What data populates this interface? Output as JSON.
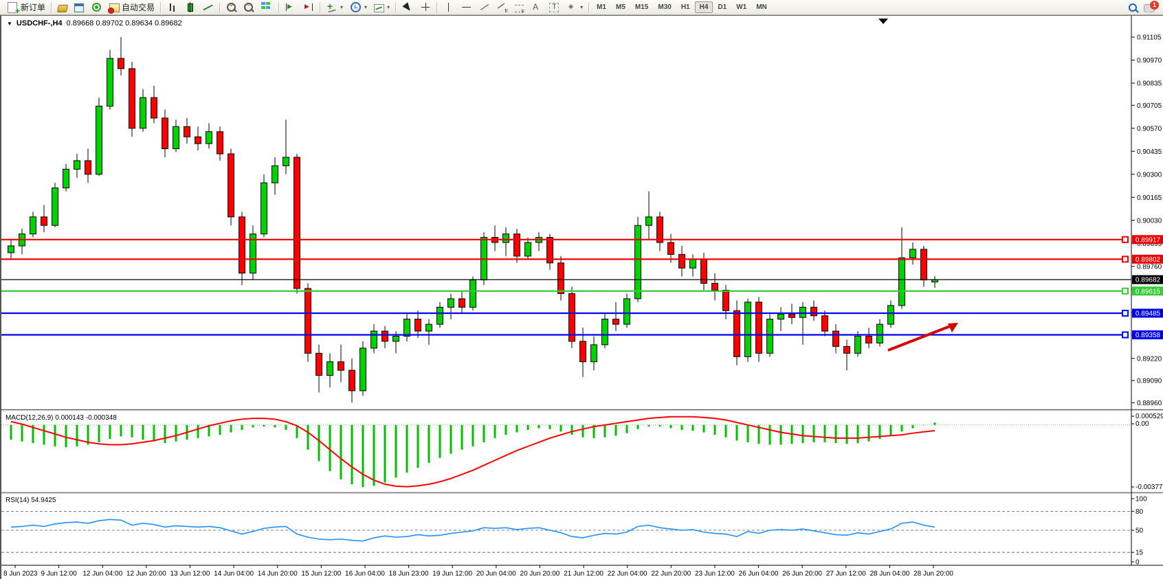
{
  "toolbar": {
    "buttons": [
      {
        "name": "new-order",
        "icon": "neworder",
        "label": "新订单"
      },
      {
        "sep": true
      },
      {
        "name": "styler",
        "icon": "gold"
      },
      {
        "name": "data-window",
        "icon": "bluewin"
      },
      {
        "name": "navigator",
        "icon": "radio"
      },
      {
        "name": "auto-trading",
        "icon": "auto",
        "label": "自动交易"
      },
      {
        "sep": true
      },
      {
        "name": "bar-chart",
        "icon": "bars"
      },
      {
        "name": "candlestick-chart",
        "icon": "candle"
      },
      {
        "name": "line-chart",
        "icon": "line"
      },
      {
        "sep": true
      },
      {
        "name": "zoom-in",
        "icon": "zoomin"
      },
      {
        "name": "zoom-out",
        "icon": "zoomout"
      },
      {
        "name": "tile-windows",
        "icon": "grid"
      },
      {
        "sep": true
      },
      {
        "name": "auto-scroll",
        "icon": "scrollr"
      },
      {
        "name": "chart-shift",
        "icon": "shiftr"
      },
      {
        "sep": true
      },
      {
        "name": "indicators-list",
        "icon": "ind",
        "caret": true
      },
      {
        "name": "period-list",
        "icon": "clock",
        "caret": true
      },
      {
        "name": "templates",
        "icon": "tpl",
        "caret": true
      },
      {
        "sep": true
      },
      {
        "name": "cursor",
        "icon": "cursor"
      },
      {
        "name": "crosshair",
        "icon": "cross"
      },
      {
        "sep": true
      },
      {
        "name": "vertical-line",
        "icon": "vl"
      },
      {
        "name": "horizontal-line",
        "icon": "hl"
      },
      {
        "name": "trend-line",
        "icon": "tl"
      },
      {
        "name": "equidistant-channel",
        "icon": "ch"
      },
      {
        "name": "fibonacci",
        "icon": "fib"
      },
      {
        "name": "text",
        "icon": "A"
      },
      {
        "name": "text-label",
        "icon": "T"
      },
      {
        "name": "arrows",
        "icon": "shapes",
        "caret": true
      },
      {
        "sep": true
      }
    ],
    "timeframes": {
      "items": [
        "M1",
        "M5",
        "M15",
        "M30",
        "H1",
        "H4",
        "D1",
        "W1",
        "MN"
      ],
      "active": "H4"
    },
    "notifications_badge": "1"
  },
  "chart": {
    "title_symbol": "USDCHF-,H4",
    "title_ohlc": "0.89668 0.89702 0.89634 0.89682",
    "macd_label": "MACD(12,26,9) 0.000143 -0.000348",
    "rsi_label": "RSI(14) 54.9425"
  },
  "colors": {
    "bull": "#00d200",
    "bear": "#ff0000",
    "outline": "#000000",
    "macd_hist": "#00c000",
    "macd_signal": "#ff0000",
    "rsi_line": "#1e90ff",
    "level_red": "#ee0000",
    "level_green": "#33cc33",
    "level_blue": "#0000ee",
    "current_price": "#000000",
    "arrow": "#d40000"
  },
  "chart_data": [
    {
      "type": "candlestick",
      "symbol": "USDCHF-",
      "timeframe": "H4",
      "current_bar": {
        "open": 0.89668,
        "high": 0.89702,
        "low": 0.89634,
        "close": 0.89682
      },
      "y_ticks": [
        "0.91105",
        "0.90970",
        "0.90835",
        "0.90705",
        "0.90570",
        "0.90435",
        "0.90300",
        "0.90165",
        "0.90030",
        "0.89895",
        "0.89760",
        "0.89625",
        "0.89490",
        "0.89355",
        "0.89220",
        "0.89090",
        "0.88960"
      ],
      "x_labels": [
        "8 Jun 2023",
        "9 Jun 12:00",
        "12 Jun 04:00",
        "12 Jun 20:00",
        "13 Jun 12:00",
        "14 Jun 04:00",
        "14 Jun 20:00",
        "15 Jun 12:00",
        "16 Jun 04:00",
        "18 Jun 23:00",
        "19 Jun 12:00",
        "20 Jun 04:00",
        "20 Jun 20:00",
        "21 Jun 12:00",
        "22 Jun 04:00",
        "22 Jun 20:00",
        "23 Jun 12:00",
        "26 Jun 04:00",
        "26 Jun 20:00",
        "27 Jun 12:00",
        "28 Jun 04:00",
        "28 Jun 20:00"
      ],
      "levels": [
        {
          "value": 0.89917,
          "label": "0.89917",
          "color": "#ee0000"
        },
        {
          "value": 0.89802,
          "label": "0.89802",
          "color": "#ee0000"
        },
        {
          "value": 0.89682,
          "label": "0.89682",
          "color": "#000000",
          "current": true
        },
        {
          "value": 0.89615,
          "label": "0.89615",
          "color": "#33cc33"
        },
        {
          "value": 0.89485,
          "label": "0.89485",
          "color": "#0000ee"
        },
        {
          "value": 0.89358,
          "label": "0.89358",
          "color": "#0000ee"
        }
      ],
      "candles": [
        [
          0.8984,
          0.8992,
          0.898,
          0.8988
        ],
        [
          0.8988,
          0.8998,
          0.8983,
          0.8995
        ],
        [
          0.8995,
          0.9008,
          0.8993,
          0.9005
        ],
        [
          0.9005,
          0.9012,
          0.8996,
          0.9
        ],
        [
          0.9,
          0.9025,
          0.8999,
          0.9022
        ],
        [
          0.9022,
          0.9036,
          0.902,
          0.9033
        ],
        [
          0.9033,
          0.9042,
          0.9028,
          0.9038
        ],
        [
          0.9038,
          0.9045,
          0.9025,
          0.903
        ],
        [
          0.903,
          0.9075,
          0.9029,
          0.907
        ],
        [
          0.907,
          0.9103,
          0.9068,
          0.9098
        ],
        [
          0.9098,
          0.91105,
          0.9088,
          0.9092
        ],
        [
          0.9092,
          0.9096,
          0.9052,
          0.9057
        ],
        [
          0.9057,
          0.908,
          0.9055,
          0.9075
        ],
        [
          0.9075,
          0.9082,
          0.906,
          0.9063
        ],
        [
          0.9063,
          0.9068,
          0.904,
          0.9045
        ],
        [
          0.9045,
          0.9062,
          0.9043,
          0.9058
        ],
        [
          0.9058,
          0.9063,
          0.9048,
          0.9052
        ],
        [
          0.9052,
          0.9058,
          0.9044,
          0.9048
        ],
        [
          0.9048,
          0.906,
          0.9045,
          0.9055
        ],
        [
          0.9055,
          0.9058,
          0.9038,
          0.9042
        ],
        [
          0.9042,
          0.9045,
          0.9,
          0.9005
        ],
        [
          0.9005,
          0.9008,
          0.8965,
          0.8972
        ],
        [
          0.8972,
          0.9,
          0.8968,
          0.8995
        ],
        [
          0.8995,
          0.903,
          0.8993,
          0.9025
        ],
        [
          0.9025,
          0.904,
          0.9018,
          0.9035
        ],
        [
          0.9035,
          0.9062,
          0.903,
          0.904
        ],
        [
          0.904,
          0.9042,
          0.896,
          0.8963
        ],
        [
          0.8963,
          0.8966,
          0.892,
          0.8925
        ],
        [
          0.8925,
          0.893,
          0.8902,
          0.8912
        ],
        [
          0.8912,
          0.8925,
          0.8905,
          0.892
        ],
        [
          0.892,
          0.893,
          0.8908,
          0.8915
        ],
        [
          0.8915,
          0.8922,
          0.8896,
          0.8903
        ],
        [
          0.8903,
          0.8932,
          0.89,
          0.8928
        ],
        [
          0.8928,
          0.8942,
          0.8925,
          0.8938
        ],
        [
          0.8938,
          0.8941,
          0.8928,
          0.8932
        ],
        [
          0.8932,
          0.8938,
          0.8925,
          0.8935
        ],
        [
          0.8935,
          0.8948,
          0.8932,
          0.8945
        ],
        [
          0.8945,
          0.895,
          0.8934,
          0.8938
        ],
        [
          0.8938,
          0.8945,
          0.893,
          0.8942
        ],
        [
          0.8942,
          0.8955,
          0.894,
          0.8952
        ],
        [
          0.8952,
          0.896,
          0.8945,
          0.8957
        ],
        [
          0.8957,
          0.8962,
          0.8948,
          0.8952
        ],
        [
          0.8952,
          0.897,
          0.895,
          0.8968
        ],
        [
          0.8968,
          0.8996,
          0.8965,
          0.8993
        ],
        [
          0.8993,
          0.9,
          0.8985,
          0.899
        ],
        [
          0.899,
          0.8999,
          0.8982,
          0.8995
        ],
        [
          0.8995,
          0.8998,
          0.8978,
          0.8982
        ],
        [
          0.8982,
          0.8993,
          0.898,
          0.899
        ],
        [
          0.899,
          0.8996,
          0.8985,
          0.8993
        ],
        [
          0.8993,
          0.8995,
          0.8974,
          0.8978
        ],
        [
          0.8978,
          0.8982,
          0.8956,
          0.896
        ],
        [
          0.896,
          0.8964,
          0.8928,
          0.8932
        ],
        [
          0.8932,
          0.894,
          0.8911,
          0.892
        ],
        [
          0.892,
          0.8935,
          0.8915,
          0.893
        ],
        [
          0.893,
          0.8948,
          0.8928,
          0.8945
        ],
        [
          0.8945,
          0.8955,
          0.8938,
          0.8942
        ],
        [
          0.8942,
          0.896,
          0.894,
          0.8957
        ],
        [
          0.8957,
          0.9005,
          0.8955,
          0.9
        ],
        [
          0.9,
          0.902,
          0.8992,
          0.9005
        ],
        [
          0.9005,
          0.9008,
          0.8985,
          0.899
        ],
        [
          0.899,
          0.8995,
          0.8978,
          0.8983
        ],
        [
          0.8983,
          0.8988,
          0.897,
          0.8975
        ],
        [
          0.8975,
          0.8983,
          0.897,
          0.898
        ],
        [
          0.898,
          0.8984,
          0.8962,
          0.8966
        ],
        [
          0.8966,
          0.8972,
          0.8956,
          0.8962
        ],
        [
          0.8962,
          0.8965,
          0.8945,
          0.895
        ],
        [
          0.895,
          0.8956,
          0.8918,
          0.8923
        ],
        [
          0.8923,
          0.8957,
          0.892,
          0.8955
        ],
        [
          0.8955,
          0.8958,
          0.892,
          0.8925
        ],
        [
          0.8925,
          0.8948,
          0.8923,
          0.8945
        ],
        [
          0.8945,
          0.8952,
          0.8938,
          0.8948
        ],
        [
          0.8948,
          0.8954,
          0.8942,
          0.8946
        ],
        [
          0.8946,
          0.8955,
          0.893,
          0.8952
        ],
        [
          0.8952,
          0.8956,
          0.8944,
          0.8947
        ],
        [
          0.8947,
          0.895,
          0.8935,
          0.8938
        ],
        [
          0.8938,
          0.8942,
          0.8925,
          0.8929
        ],
        [
          0.8929,
          0.8933,
          0.8915,
          0.8925
        ],
        [
          0.8925,
          0.8938,
          0.8923,
          0.8935
        ],
        [
          0.8935,
          0.894,
          0.8928,
          0.8931
        ],
        [
          0.8931,
          0.8945,
          0.8929,
          0.8942
        ],
        [
          0.8942,
          0.8956,
          0.894,
          0.8953
        ],
        [
          0.8953,
          0.8999,
          0.8951,
          0.8981
        ],
        [
          0.8981,
          0.899,
          0.8977,
          0.8986
        ],
        [
          0.8986,
          0.8988,
          0.8964,
          0.8968
        ],
        [
          0.89668,
          0.89702,
          0.89634,
          0.89682
        ]
      ],
      "annotation_arrow": {
        "from": [
          1290,
          509
        ],
        "to": [
          1392,
          469
        ],
        "color": "#d40000"
      }
    },
    {
      "type": "bar+line",
      "name": "MACD(12,26,9)",
      "current": {
        "macd": 0.000143,
        "signal": -0.000348
      },
      "scale_labels": [
        "0.000529",
        "0.00",
        "-0.003771"
      ],
      "histogram": [
        -0.0009,
        -0.001,
        -0.0011,
        -0.0012,
        -0.0013,
        -0.00135,
        -0.0013,
        -0.0012,
        -0.00105,
        -0.00085,
        -0.0007,
        -0.00075,
        -0.0009,
        -0.001,
        -0.0011,
        -0.001,
        -0.0009,
        -0.0008,
        -0.0007,
        -0.0006,
        -0.00045,
        -0.0003,
        -0.00015,
        -0.0001,
        -0.00015,
        -0.0003,
        -0.0008,
        -0.0015,
        -0.0022,
        -0.0028,
        -0.0033,
        -0.0036,
        -0.003771,
        -0.0037,
        -0.0035,
        -0.0032,
        -0.0029,
        -0.0026,
        -0.0023,
        -0.002,
        -0.00175,
        -0.0015,
        -0.0013,
        -0.00105,
        -0.0008,
        -0.0006,
        -0.00045,
        -0.0003,
        -0.0002,
        -0.00025,
        -0.0004,
        -0.0006,
        -0.00075,
        -0.0008,
        -0.00075,
        -0.00065,
        -0.0005,
        -0.00025,
        -0.0001,
        -0.0001,
        -0.0002,
        -0.0003,
        -0.00035,
        -0.00045,
        -0.0006,
        -0.00075,
        -0.00095,
        -0.00105,
        -0.00115,
        -0.0012,
        -0.0012,
        -0.00115,
        -0.0011,
        -0.00105,
        -0.00105,
        -0.0011,
        -0.00115,
        -0.0011,
        -0.001,
        -0.00085,
        -0.00065,
        -0.0004,
        -0.0002,
        -2e-05,
        0.000143
      ],
      "signal": [
        0.0002,
        5e-05,
        -0.00015,
        -0.00035,
        -0.00055,
        -0.00075,
        -0.0009,
        -0.00105,
        -0.00115,
        -0.0012,
        -0.0012,
        -0.00115,
        -0.00105,
        -0.00095,
        -0.0008,
        -0.00065,
        -0.00045,
        -0.00025,
        -5e-05,
        0.0001,
        0.00025,
        0.00035,
        0.0004,
        0.0004,
        0.00035,
        0.0002,
        -5e-05,
        -0.00045,
        -0.00095,
        -0.0015,
        -0.00205,
        -0.00255,
        -0.003,
        -0.00335,
        -0.0036,
        -0.00372,
        -0.00375,
        -0.0037,
        -0.0036,
        -0.00345,
        -0.00325,
        -0.003,
        -0.00275,
        -0.00245,
        -0.00215,
        -0.00185,
        -0.00155,
        -0.0013,
        -0.00105,
        -0.0008,
        -0.0006,
        -0.0004,
        -0.00025,
        -0.0001,
        0.0,
        0.0001,
        0.0002,
        0.0003,
        0.0004,
        0.00045,
        0.0005,
        0.0005,
        0.0005,
        0.00045,
        0.0004,
        0.0003,
        0.00015,
        0.0,
        -0.00015,
        -0.0003,
        -0.00045,
        -0.00055,
        -0.00065,
        -0.0007,
        -0.00075,
        -0.0008,
        -0.0008,
        -0.0008,
        -0.00075,
        -0.0007,
        -0.00065,
        -0.0006,
        -0.0005,
        -0.00042,
        -0.000348
      ]
    },
    {
      "type": "line",
      "name": "RSI(14)",
      "current": 54.9425,
      "range": [
        0,
        100
      ],
      "levels": [
        80,
        50,
        15
      ],
      "scale_labels": [
        "100",
        "80",
        "50",
        "15",
        "0"
      ],
      "values": [
        55,
        56,
        58,
        56,
        60,
        62,
        63,
        61,
        65,
        67,
        66,
        58,
        61,
        59,
        55,
        57,
        56,
        55,
        56,
        54,
        49,
        44,
        48,
        53,
        55,
        56,
        44,
        39,
        36,
        35,
        36,
        34,
        33,
        38,
        41,
        39,
        40,
        43,
        41,
        42,
        45,
        47,
        49,
        54,
        53,
        54,
        51,
        53,
        54,
        50,
        46,
        40,
        38,
        42,
        45,
        44,
        47,
        56,
        58,
        54,
        52,
        50,
        51,
        47,
        45,
        44,
        40,
        48,
        45,
        50,
        51,
        50,
        52,
        49,
        46,
        43,
        42,
        46,
        44,
        48,
        52,
        61,
        63,
        58,
        54.94
      ]
    }
  ]
}
